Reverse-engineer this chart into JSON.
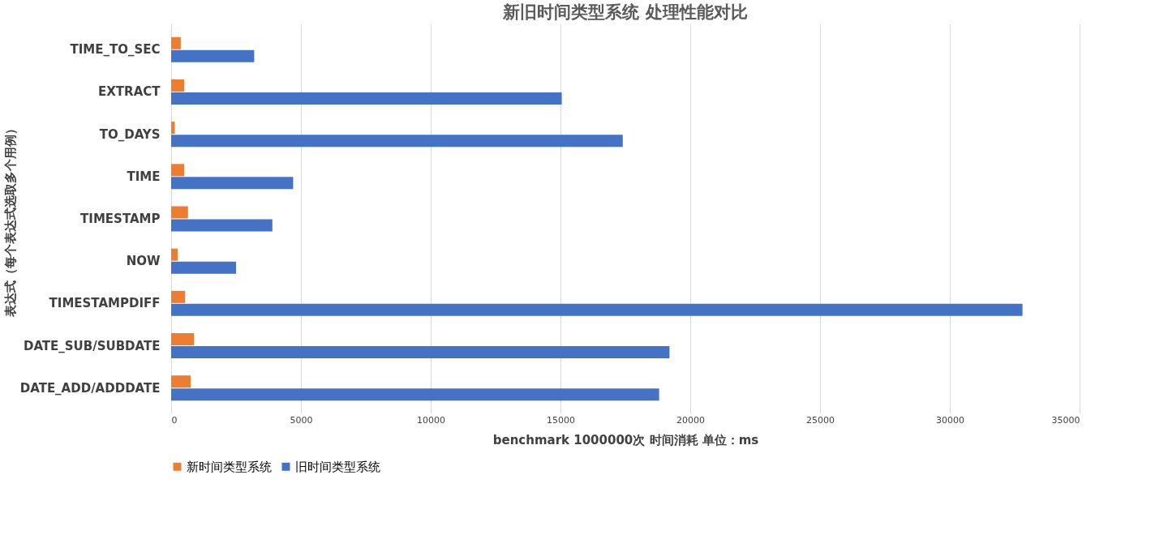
{
  "chart_data": {
    "type": "bar",
    "orientation": "horizontal",
    "title": "新旧时间类型系统 处理性能对比",
    "xlabel": "benchmark 1000000次 时间消耗 单位：ms",
    "ylabel": "表达式（每个表达式选取多个用例）",
    "categories": [
      "TIME_TO_SEC",
      "EXTRACT",
      "TO_DAYS",
      "TIME",
      "TIMESTAMP",
      "NOW",
      "TIMESTAMPDIFF",
      "DATE_SUB/SUBDATE",
      "DATE_ADD/ADDDATE"
    ],
    "series": [
      {
        "name": "新时间类型系统",
        "color": "#ed7d31",
        "values": [
          370,
          500,
          140,
          500,
          650,
          250,
          540,
          880,
          750
        ]
      },
      {
        "name": "旧时间类型系统",
        "color": "#4472c4",
        "values": [
          3200,
          15050,
          17400,
          4700,
          3900,
          2500,
          32800,
          19200,
          18800
        ]
      }
    ],
    "xlim": [
      0,
      35000
    ],
    "xticks": [
      0,
      5000,
      10000,
      15000,
      20000,
      25000,
      30000,
      35000
    ],
    "grid": "x",
    "legend": "bottom"
  }
}
